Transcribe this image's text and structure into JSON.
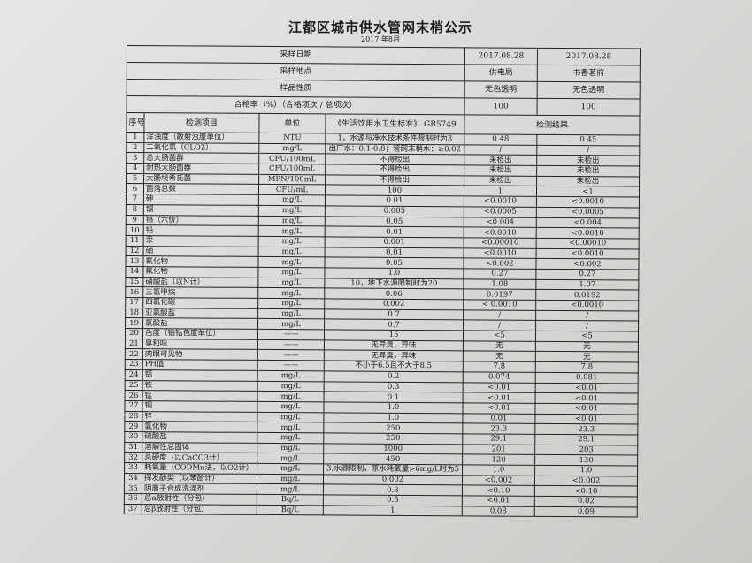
{
  "document": {
    "title": "江都区城市供水管网末梢公示",
    "subtitle": "2017 年8月"
  },
  "header_rows": [
    {
      "label": "采样日期",
      "values": [
        "2017.08.28",
        "2017.08.28"
      ]
    },
    {
      "label": "采样地点",
      "values": [
        "供电局",
        "书香茗府"
      ]
    },
    {
      "label": "样品性质",
      "values": [
        "无色透明",
        "无色透明"
      ]
    },
    {
      "label": "合格率（%）（合格项次 / 总项次）",
      "values": [
        "100",
        "100"
      ]
    }
  ],
  "columns": {
    "seq": "序号",
    "item": "检测项目",
    "unit": "单位",
    "standard": "《生活饮用水卫生标准》 GB5749",
    "result": "检测结果"
  },
  "rows": [
    [
      "1",
      "浑浊度（散射浊度单位）",
      "NTU",
      "1，水源与净水技术条件限制时为3",
      "0.48",
      "0.45"
    ],
    [
      "2",
      "二氧化氯（CLO2）",
      "mg/L",
      "出厂水：0.1-0.8；管网末梢水：≥0.02",
      "/",
      "/"
    ],
    [
      "3",
      "总大肠菌群",
      "CFU/100mL",
      "不得检出",
      "未检出",
      "未检出"
    ],
    [
      "4",
      "耐热大肠菌群",
      "CFU/100mL",
      "不得检出",
      "未检出",
      "未检出"
    ],
    [
      "5",
      "大肠埃希氏菌",
      "MPN/100mL",
      "不得检出",
      "未检出",
      "未检出"
    ],
    [
      "6",
      "菌落总数",
      "CFU/mL",
      "100",
      "1",
      "<1"
    ],
    [
      "7",
      "砷",
      "mg/L",
      "0.01",
      "<0.0010",
      "<0.0010"
    ],
    [
      "8",
      "镉",
      "mg/L",
      "0.005",
      "<0.0005",
      "<0.0005"
    ],
    [
      "9",
      "铬（六价）",
      "mg/L",
      "0.05",
      "<0.004",
      "<0.004"
    ],
    [
      "10",
      "铅",
      "mg/L",
      "0.01",
      "<0.0010",
      "<0.0010"
    ],
    [
      "11",
      "汞",
      "mg/L",
      "0.001",
      "<0.00010",
      "<0.00010"
    ],
    [
      "12",
      "硒",
      "mg/L",
      "0.01",
      "<0.0010",
      "<0.0010"
    ],
    [
      "13",
      "氰化物",
      "mg/L",
      "0.05",
      "<0.002",
      "<0.002"
    ],
    [
      "14",
      "氟化物",
      "mg/L",
      "1.0",
      "0.27",
      "0.27"
    ],
    [
      "15",
      "硝酸盐（以N计）",
      "mg/L",
      "10，地下水源限制时为20",
      "1.08",
      "1.07"
    ],
    [
      "16",
      "三氯甲烷",
      "mg/L",
      "0.06",
      "0.0197",
      "0.0192"
    ],
    [
      "17",
      "四氯化碳",
      "mg/L",
      "0.002",
      "< 0.0010",
      "<0.0010"
    ],
    [
      "18",
      "亚氯酸盐",
      "mg/L",
      "0.7",
      "/",
      "/"
    ],
    [
      "19",
      "氯酸盐",
      "mg/L",
      "0.7",
      "/",
      "/"
    ],
    [
      "20",
      "色度（铂钴色度单位）",
      "——",
      "15",
      "<5",
      "<5"
    ],
    [
      "21",
      "臭和味",
      "——",
      "无异臭，异味",
      "无",
      "无"
    ],
    [
      "22",
      "肉眼可见物",
      "——",
      "无异臭，异味",
      "无",
      "无"
    ],
    [
      "23",
      "PH值",
      "——",
      "不小于6.5且不大于8.5",
      "7.8",
      "7.8"
    ],
    [
      "24",
      "铝",
      "mg/L",
      "0.2",
      "0.074",
      "0.081"
    ],
    [
      "25",
      "铁",
      "mg/L",
      "0.3",
      "<0.01",
      "<0.01"
    ],
    [
      "26",
      "锰",
      "mg/L",
      "0.1",
      "<0.01",
      "<0.01"
    ],
    [
      "27",
      "铜",
      "mg/L",
      "1.0",
      "<0.01",
      "<0.01"
    ],
    [
      "28",
      "锌",
      "mg/L",
      "1.0",
      "0.01",
      "<0.01"
    ],
    [
      "29",
      "氯化物",
      "mg/L",
      "250",
      "23.3",
      "23.3"
    ],
    [
      "30",
      "硫酸盐",
      "mg/L",
      "250",
      "29.1",
      "29.1"
    ],
    [
      "31",
      "溶解性总固体",
      "mg/L",
      "1000",
      "201",
      "203"
    ],
    [
      "32",
      "总硬度（以CaCO3计）",
      "mg/L",
      "450",
      "120",
      "130"
    ],
    [
      "33",
      "耗氧量（CODMn法，以O2计）",
      "mg/L",
      "3,水源限制，原水耗氧量>6mg/L时为5",
      "1.0",
      "1.0"
    ],
    [
      "34",
      "挥发酚类（以苯酚计）",
      "mg/L",
      "0.002",
      "<0.002",
      "<0.002"
    ],
    [
      "35",
      "阴离子合成洗涤剂",
      "mg/L",
      "0.3",
      "<0.10",
      "<0.10"
    ],
    [
      "36",
      "总α放射性（分包）",
      "Bq/L",
      "0.5",
      "<0.01",
      "0.02"
    ],
    [
      "37",
      "总β放射性（分包）",
      "Bq/L",
      "1",
      "0.08",
      "0.09"
    ]
  ]
}
